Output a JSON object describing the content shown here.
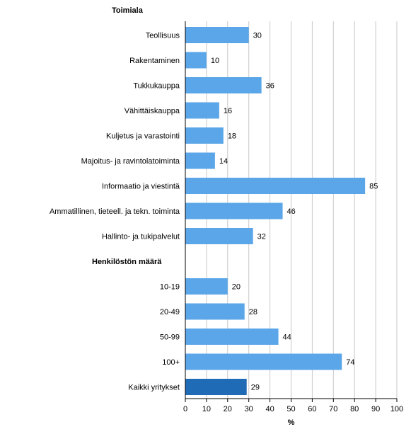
{
  "chart_data": {
    "type": "bar",
    "orientation": "horizontal",
    "xlabel": "%",
    "xlim": [
      0,
      100
    ],
    "xticks": [
      0,
      10,
      20,
      30,
      40,
      50,
      60,
      70,
      80,
      90,
      100
    ],
    "grid": true,
    "colors": {
      "bar": "#5aa6e8",
      "total_bar": "#1f6bb5",
      "grid": "#c8c8c8"
    },
    "rows": [
      {
        "kind": "header",
        "label": "Toimiala"
      },
      {
        "kind": "bar",
        "label": "Teollisuus",
        "value": 30
      },
      {
        "kind": "bar",
        "label": "Rakentaminen",
        "value": 10
      },
      {
        "kind": "bar",
        "label": "Tukkukauppa",
        "value": 36
      },
      {
        "kind": "bar",
        "label": "Vähittäiskauppa",
        "value": 16
      },
      {
        "kind": "bar",
        "label": "Kuljetus ja varastointi",
        "value": 18
      },
      {
        "kind": "bar",
        "label": "Majoitus- ja ravintolatoiminta",
        "value": 14
      },
      {
        "kind": "bar",
        "label": "Informaatio ja viestintä",
        "value": 85
      },
      {
        "kind": "bar",
        "label": "Ammatillinen, tieteell. ja tekn. toiminta",
        "value": 46
      },
      {
        "kind": "bar",
        "label": "Hallinto- ja tukipalvelut",
        "value": 32
      },
      {
        "kind": "header",
        "label": "Henkilöstön määrä"
      },
      {
        "kind": "bar",
        "label": "10-19",
        "value": 20
      },
      {
        "kind": "bar",
        "label": "20-49",
        "value": 28
      },
      {
        "kind": "bar",
        "label": "50-99",
        "value": 44
      },
      {
        "kind": "bar",
        "label": "100+",
        "value": 74
      },
      {
        "kind": "bar",
        "label": "Kaikki yritykset",
        "value": 29,
        "total": true
      }
    ]
  }
}
